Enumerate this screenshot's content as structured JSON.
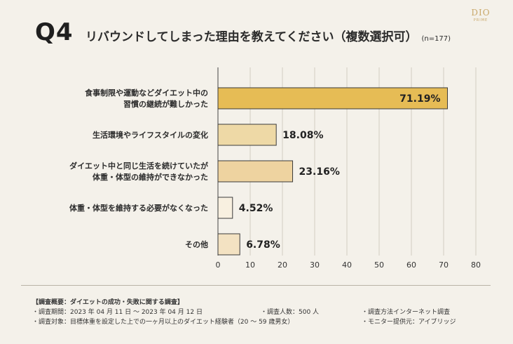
{
  "header": {
    "q_number": "Q4",
    "title": "リバウンドしてしまった理由を教えてください（複数選択可）",
    "sample": "(n=177)"
  },
  "logo": {
    "main": "DIO",
    "sub": "PRIME"
  },
  "chart_data": {
    "type": "bar",
    "orientation": "horizontal",
    "title": "リバウンドしてしまった理由を教えてください（複数選択可）",
    "categories": [
      [
        "食事制限や運動などダイエット中の",
        "習慣の継続が難しかった"
      ],
      [
        "生活環境やライフスタイルの変化"
      ],
      [
        "ダイエット中と同じ生活を続けていたが",
        "体重・体型の維持ができなかった"
      ],
      [
        "体重・体型を維持する必要がなくなった"
      ],
      [
        "その他"
      ]
    ],
    "values": [
      71.19,
      18.08,
      23.16,
      4.52,
      6.78
    ],
    "value_labels": [
      "71.19%",
      "18.08%",
      "23.16%",
      "4.52%",
      "6.78%"
    ],
    "xlim": [
      0,
      80
    ],
    "xticks": [
      0,
      10,
      20,
      30,
      40,
      50,
      60,
      70,
      80
    ],
    "grid": true,
    "bar_colors": [
      "#e6bc55",
      "#eed9a6",
      "#eed3a0",
      "#f8f0e0",
      "#f3e2c2"
    ]
  },
  "footer": {
    "title": "【調査概要：ダイエットの成功・失敗に関する調査】",
    "period": "・調査期間：2023 年 04 月 11 日 ～ 2023 年 04 月 12 日",
    "people": "・調査人数：500 人",
    "method": "・調査方法インターネット調査",
    "target": "・調査対象：目標体重を設定した上での一ヶ月以上のダイエット経験者（20 ～ 59 歳男女）",
    "provider": "・モニター提供元：アイブリッジ"
  }
}
